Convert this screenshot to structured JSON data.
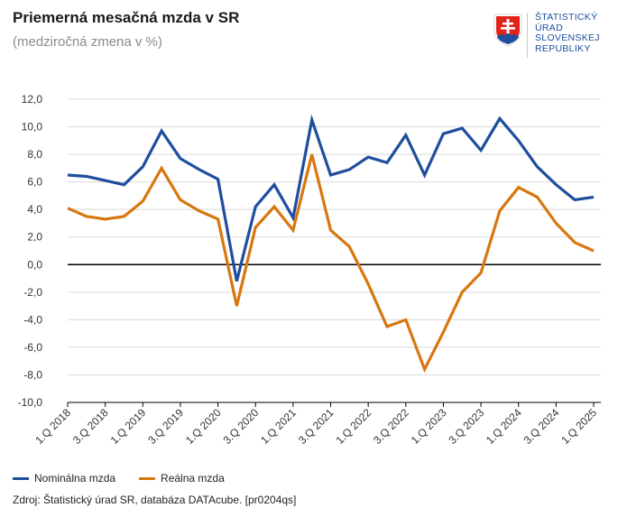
{
  "header": {
    "title": "Priemerná mesačná mzda v SR",
    "subtitle": "(medziročná zmena v %)"
  },
  "logo": {
    "lines": [
      "ŠTATISTICKÝ",
      "ÚRAD",
      "SLOVENSKEJ",
      "REPUBLIKY"
    ]
  },
  "colors": {
    "nominal": "#1f4e9e",
    "real": "#d8770f",
    "grid": "#d9d9d9",
    "zero_line": "#000000"
  },
  "chart_data": {
    "type": "line",
    "title": "Priemerná mesačná mzda v SR",
    "subtitle": "(medziročná zmena v %)",
    "xlabel": "",
    "ylabel": "",
    "ylim": [
      -10,
      12
    ],
    "yticks": [
      12,
      10,
      8,
      6,
      4,
      2,
      0,
      -2,
      -4,
      -6,
      -8,
      -10
    ],
    "ytick_labels": [
      "12,0",
      "10,0",
      "8,0",
      "6,0",
      "4,0",
      "2,0",
      "0,0",
      "-2,0",
      "-4,0",
      "-6,0",
      "-8,0",
      "-10,0"
    ],
    "x": [
      "1.Q 2018",
      "2.Q 2018",
      "3.Q 2018",
      "4.Q 2018",
      "1.Q 2019",
      "2.Q 2019",
      "3.Q 2019",
      "4.Q 2019",
      "1.Q 2020",
      "2.Q 2020",
      "3.Q 2020",
      "4.Q 2020",
      "1.Q 2021",
      "2.Q 2021",
      "3.Q 2021",
      "4.Q 2021",
      "1.Q 2022",
      "2.Q 2022",
      "3.Q 2022",
      "4.Q 2022",
      "1.Q 2023",
      "2.Q 2023",
      "3.Q 2023",
      "4.Q 2023",
      "1.Q 2024",
      "2.Q 2024",
      "3.Q 2024",
      "4.Q 2024",
      "1.Q 2025"
    ],
    "xtick_labels": [
      "1.Q 2018",
      "3.Q 2018",
      "1.Q 2019",
      "3.Q 2019",
      "1.Q 2020",
      "3.Q 2020",
      "1.Q 2021",
      "3.Q 2021",
      "1.Q 2022",
      "3.Q 2022",
      "1.Q 2023",
      "3.Q 2023",
      "1.Q 2024",
      "3.Q 2024",
      "1.Q 2025"
    ],
    "grid": true,
    "legend_position": "bottom-left",
    "series": [
      {
        "name": "Nominálna mzda",
        "color": "#1f4e9e",
        "values": [
          6.5,
          6.4,
          6.1,
          5.8,
          7.1,
          9.7,
          7.7,
          6.9,
          6.2,
          -1.2,
          4.2,
          5.8,
          3.4,
          10.5,
          6.5,
          6.9,
          7.8,
          7.4,
          9.4,
          6.5,
          9.5,
          9.9,
          8.3,
          10.6,
          9.0,
          7.1,
          5.8,
          4.7,
          4.9
        ]
      },
      {
        "name": "Reálna mzda",
        "color": "#d8770f",
        "values": [
          4.1,
          3.5,
          3.3,
          3.5,
          4.6,
          7.0,
          4.7,
          3.9,
          3.3,
          -3.0,
          2.7,
          4.2,
          2.5,
          8.0,
          2.5,
          1.3,
          -1.4,
          -4.5,
          -4.0,
          -7.6,
          -4.9,
          -2.0,
          -0.6,
          3.9,
          5.6,
          4.9,
          3.0,
          1.6,
          1.0
        ]
      }
    ]
  },
  "legend": {
    "nominal_label": "Nominálna mzda",
    "real_label": "Reálna mzda"
  },
  "footer": {
    "source": "Zdroj: Štatistický úrad SR, databáza DATAcube. [pr0204qs]"
  }
}
